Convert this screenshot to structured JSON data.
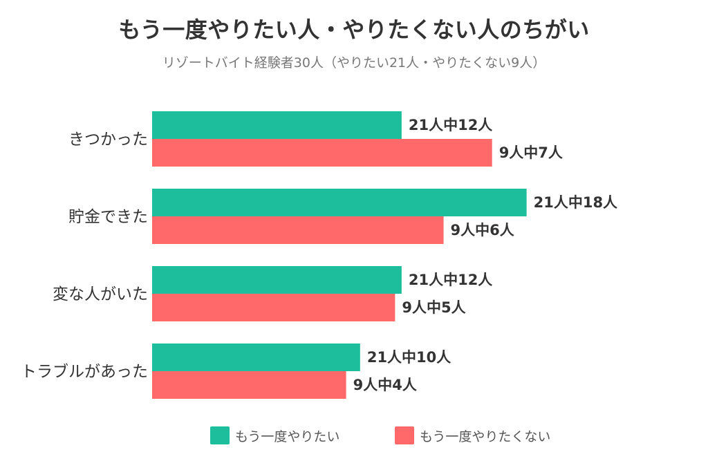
{
  "chart_data": {
    "type": "bar",
    "orientation": "horizontal",
    "title": "もう一度やりたい人・やりたくない人のちがい",
    "subtitle": "リゾートバイト経験者30人（やりたい21人・やりたくない9人）",
    "categories": [
      "きつかった",
      "貯金できた",
      "変な人がいた",
      "トラブルがあった"
    ],
    "series": [
      {
        "name": "もう一度やりたい",
        "color": "#1DBE9C",
        "values": [
          57.1,
          85.7,
          57.1,
          47.6
        ],
        "labels": [
          "21人中12人",
          "21人中18人",
          "21人中12人",
          "21人中10人"
        ]
      },
      {
        "name": "もう一度やりたくない",
        "color": "#FF6969",
        "values": [
          77.8,
          66.7,
          55.6,
          44.4
        ],
        "labels": [
          "9人中7人",
          "9人中6人",
          "9人中5人",
          "9人中4人"
        ]
      }
    ],
    "xlim": [
      0,
      100
    ],
    "grid": false,
    "legend_position": "bottom"
  }
}
